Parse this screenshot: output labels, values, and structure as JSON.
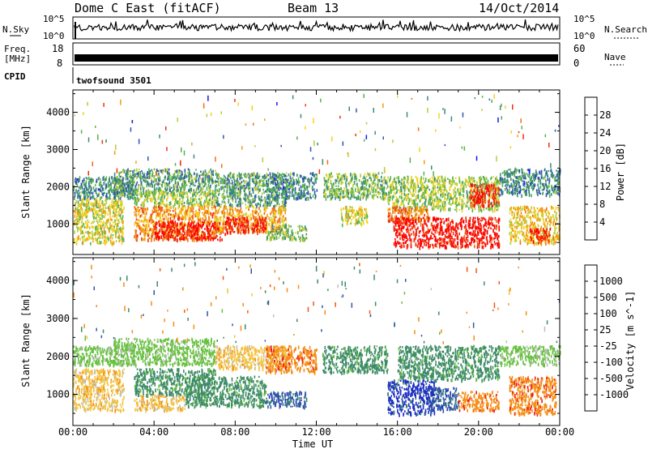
{
  "header": {
    "station": "Dome C East (fitACF)",
    "beam": "Beam 13",
    "date": "14/Oct/2014"
  },
  "noise_panel": {
    "left_label": "N.Sky",
    "right_label": "N.Search",
    "scale_top": "10^5",
    "scale_bottom": "10^0"
  },
  "freq_panel": {
    "left_label_line1": "Freq.",
    "left_label_line2": "[MHz]",
    "left_ticks": [
      "18",
      "8"
    ],
    "right_label": "Nave",
    "right_ticks": [
      "60",
      "0"
    ]
  },
  "cpid": {
    "label": "CPID",
    "value": "twofsound 3501"
  },
  "time_axis": {
    "label": "Time UT",
    "ticks": [
      "00:00",
      "04:00",
      "08:00",
      "12:00",
      "16:00",
      "20:00",
      "00:00"
    ]
  },
  "chart_data": [
    {
      "type": "heatmap",
      "title": "",
      "xlabel": "Time UT",
      "ylabel": "Slant Range [km]",
      "x_range_hours": [
        0,
        24
      ],
      "ylim": [
        180,
        4600
      ],
      "y_ticks": [
        1000,
        2000,
        3000,
        4000
      ],
      "colorbar": {
        "label": "Power [dB]",
        "range": [
          0,
          32
        ],
        "ticks": [
          "4",
          "8",
          "12",
          "16",
          "20",
          "24",
          "28"
        ],
        "colors": [
          "#1515ee",
          "#2e53b0",
          "#3c8a78",
          "#56b050",
          "#b8cc3a",
          "#f3d21e",
          "#f59b10",
          "#f06e18",
          "#ee3010",
          "#ff0000"
        ]
      },
      "regions": [
        {
          "x": [
            0.0,
            3.0
          ],
          "y": [
            1700,
            2300
          ],
          "value": 8
        },
        {
          "x": [
            0.0,
            2.5
          ],
          "y": [
            500,
            1700
          ],
          "value": 16
        },
        {
          "x": [
            2.0,
            7.0
          ],
          "y": [
            1800,
            2500
          ],
          "value": 10
        },
        {
          "x": [
            3.0,
            7.0
          ],
          "y": [
            1500,
            1900
          ],
          "value": 14
        },
        {
          "x": [
            3.0,
            7.0
          ],
          "y": [
            600,
            1500
          ],
          "value": 22
        },
        {
          "x": [
            4.0,
            7.5
          ],
          "y": [
            600,
            1100
          ],
          "value": 30
        },
        {
          "x": [
            7.0,
            10.5
          ],
          "y": [
            1500,
            2400
          ],
          "value": 10
        },
        {
          "x": [
            7.0,
            10.5
          ],
          "y": [
            800,
            1500
          ],
          "value": 20
        },
        {
          "x": [
            7.5,
            9.5
          ],
          "y": [
            800,
            1200
          ],
          "value": 30
        },
        {
          "x": [
            9.5,
            12.0
          ],
          "y": [
            1700,
            2400
          ],
          "value": 8
        },
        {
          "x": [
            9.5,
            11.5
          ],
          "y": [
            600,
            1000
          ],
          "value": 12
        },
        {
          "x": [
            12.3,
            15.5
          ],
          "y": [
            1700,
            2400
          ],
          "value": 12
        },
        {
          "x": [
            13.2,
            14.5
          ],
          "y": [
            1000,
            1500
          ],
          "value": 16
        },
        {
          "x": [
            15.5,
            21.0
          ],
          "y": [
            1400,
            2300
          ],
          "value": 14
        },
        {
          "x": [
            15.5,
            17.5
          ],
          "y": [
            1100,
            1500
          ],
          "value": 24
        },
        {
          "x": [
            15.8,
            21.0
          ],
          "y": [
            400,
            1200
          ],
          "value": 30
        },
        {
          "x": [
            19.5,
            21.0
          ],
          "y": [
            1500,
            2100
          ],
          "value": 28
        },
        {
          "x": [
            21.0,
            24.0
          ],
          "y": [
            1800,
            2500
          ],
          "value": 8
        },
        {
          "x": [
            21.5,
            24.0
          ],
          "y": [
            500,
            1500
          ],
          "value": 18
        },
        {
          "x": [
            22.5,
            23.5
          ],
          "y": [
            500,
            900
          ],
          "value": 28
        }
      ]
    },
    {
      "type": "heatmap",
      "title": "",
      "xlabel": "Time UT",
      "ylabel": "Slant Range [km]",
      "x_range_hours": [
        0,
        24
      ],
      "ylim": [
        180,
        4600
      ],
      "y_ticks": [
        1000,
        2000,
        3000,
        4000
      ],
      "colorbar": {
        "label": "Velocity [m s^-1]",
        "ticks": [
          "1000",
          "500",
          "100",
          "25",
          "-25",
          "-100",
          "-500",
          "-1000"
        ],
        "colors": [
          "#1d2dc4",
          "#2f58a2",
          "#3d8a68",
          "#68c040",
          "#bebebe",
          "#f3c23a",
          "#f58e16",
          "#f0561a",
          "#ee1212"
        ]
      },
      "regions": [
        {
          "x": [
            0.0,
            3.0
          ],
          "y": [
            1800,
            2300
          ],
          "value": 25
        },
        {
          "x": [
            0.0,
            2.5
          ],
          "y": [
            600,
            1700
          ],
          "value": -100
        },
        {
          "x": [
            2.0,
            7.0
          ],
          "y": [
            1800,
            2500
          ],
          "value": 25
        },
        {
          "x": [
            3.0,
            7.0
          ],
          "y": [
            1000,
            1700
          ],
          "value": 100
        },
        {
          "x": [
            3.0,
            5.5
          ],
          "y": [
            600,
            1000
          ],
          "value": -100
        },
        {
          "x": [
            5.5,
            9.5
          ],
          "y": [
            700,
            1500
          ],
          "value": 100
        },
        {
          "x": [
            7.0,
            10.5
          ],
          "y": [
            1700,
            2300
          ],
          "value": -100
        },
        {
          "x": [
            9.5,
            12.0
          ],
          "y": [
            1600,
            2300
          ],
          "value": -500
        },
        {
          "x": [
            9.5,
            11.5
          ],
          "y": [
            700,
            1100
          ],
          "value": 500
        },
        {
          "x": [
            12.3,
            15.5
          ],
          "y": [
            1600,
            2300
          ],
          "value": 100
        },
        {
          "x": [
            15.5,
            17.8
          ],
          "y": [
            500,
            1400
          ],
          "value": 1000
        },
        {
          "x": [
            16.0,
            21.0
          ],
          "y": [
            1400,
            2300
          ],
          "value": 100
        },
        {
          "x": [
            17.5,
            19.0
          ],
          "y": [
            600,
            1200
          ],
          "value": 500
        },
        {
          "x": [
            19.0,
            21.0
          ],
          "y": [
            600,
            1100
          ],
          "value": -500
        },
        {
          "x": [
            21.0,
            24.0
          ],
          "y": [
            1800,
            2300
          ],
          "value": 25
        },
        {
          "x": [
            21.5,
            23.8
          ],
          "y": [
            500,
            1500
          ],
          "value": -500
        }
      ]
    }
  ]
}
